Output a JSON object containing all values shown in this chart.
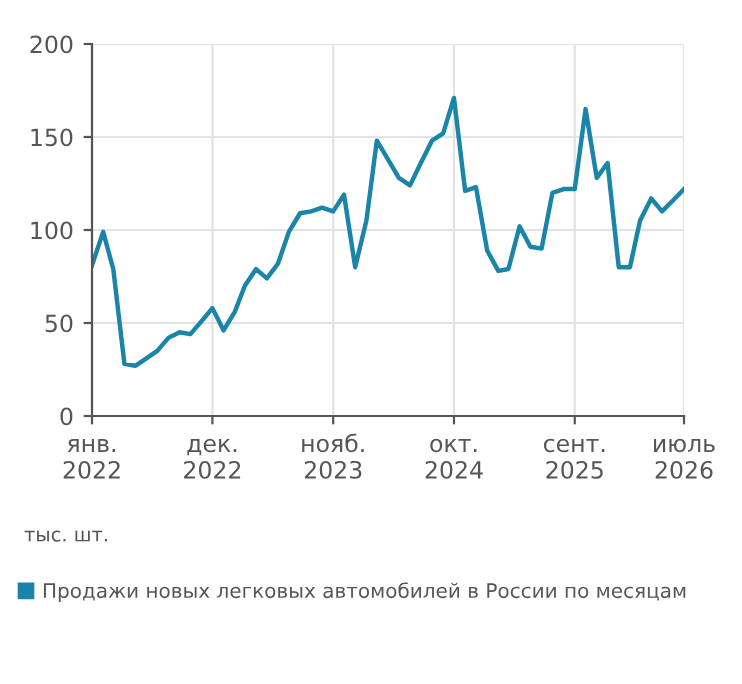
{
  "chart_data": {
    "type": "line",
    "x": [
      "2022-01",
      "2022-02",
      "2022-03",
      "2022-04",
      "2022-05",
      "2022-06",
      "2022-07",
      "2022-08",
      "2022-09",
      "2022-10",
      "2022-11",
      "2022-12",
      "2023-01",
      "2023-02",
      "2023-03",
      "2023-04",
      "2023-05",
      "2023-06",
      "2023-07",
      "2023-08",
      "2023-09",
      "2023-10",
      "2023-11",
      "2023-12",
      "2024-01",
      "2024-02",
      "2024-03",
      "2024-04",
      "2024-05",
      "2024-06",
      "2024-07",
      "2024-08",
      "2024-09",
      "2024-10",
      "2024-11",
      "2024-12",
      "2025-01",
      "2025-02",
      "2025-03",
      "2025-04",
      "2025-05",
      "2025-06",
      "2025-07",
      "2025-08",
      "2025-09",
      "2025-10",
      "2025-11",
      "2025-12",
      "2026-01",
      "2026-02",
      "2026-03",
      "2026-04",
      "2026-05",
      "2026-06",
      "2026-07"
    ],
    "series": [
      {
        "name": "Продажи новых легковых автомобилей в России по месяцам",
        "color": "#1a85a8",
        "values": [
          81,
          99,
          79,
          28,
          27,
          31,
          35,
          42,
          45,
          44,
          51,
          58,
          46,
          56,
          70,
          79,
          74,
          82,
          99,
          109,
          110,
          112,
          110,
          119,
          80,
          105,
          148,
          138,
          128,
          124,
          136,
          148,
          152,
          171,
          121,
          123,
          89,
          78,
          79,
          102,
          91,
          90,
          120,
          122,
          122,
          165,
          128,
          136,
          80,
          80,
          105,
          117,
          110,
          116,
          122
        ]
      }
    ],
    "xlim": [
      "2022-01",
      "2026-07"
    ],
    "xticks": [
      {
        "value": "2022-01",
        "label": "янв.\n2022"
      },
      {
        "value": "2022-12",
        "label": "дек.\n2022"
      },
      {
        "value": "2023-11",
        "label": "нояб.\n2023"
      },
      {
        "value": "2024-10",
        "label": "окт.\n2024"
      },
      {
        "value": "2025-09",
        "label": "сент.\n2025"
      },
      {
        "value": "2026-07",
        "label": "июль\n2026"
      }
    ],
    "ylim": [
      0,
      200
    ],
    "yticks": [
      0,
      50,
      100,
      150,
      200
    ],
    "grid": true,
    "legend": "bottom",
    "marker": "none",
    "line_style": "solid",
    "annotations": [
      "тыс. шт."
    ]
  }
}
